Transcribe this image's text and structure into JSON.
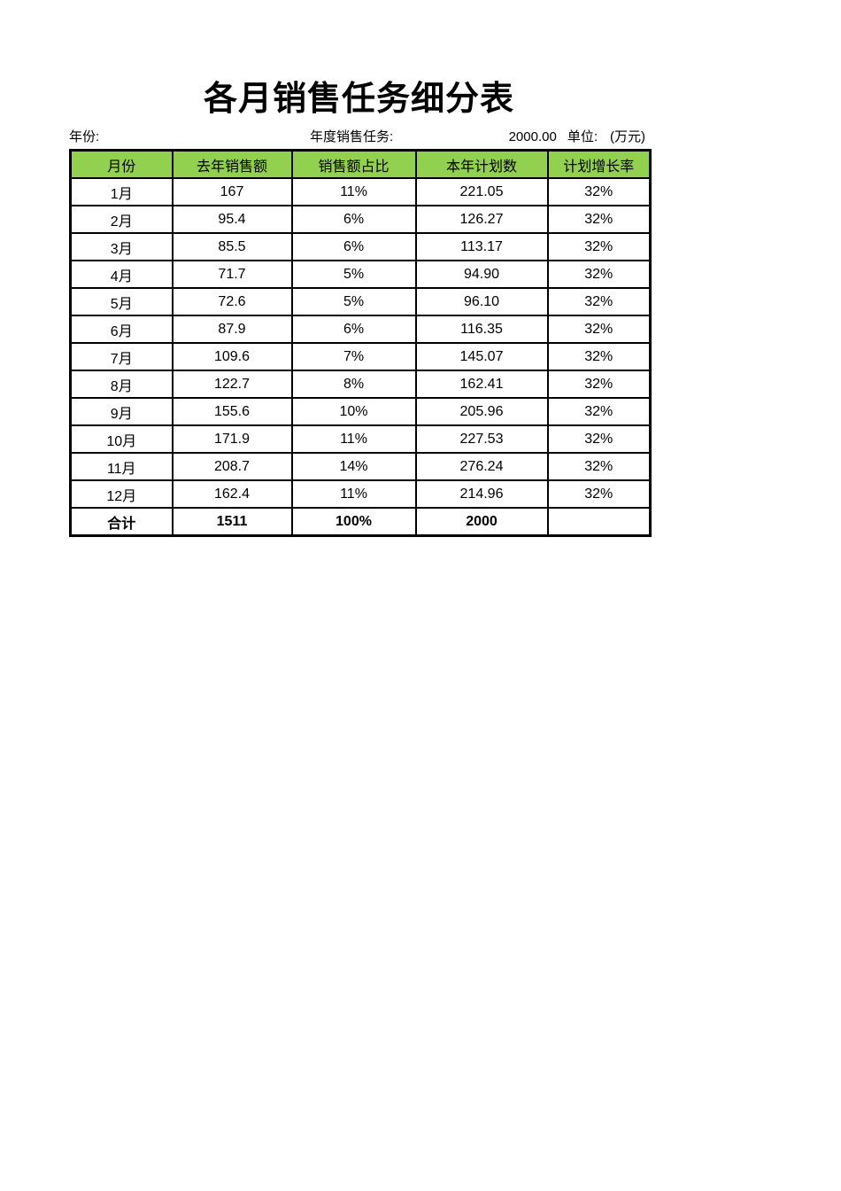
{
  "title": "各月销售任务细分表",
  "meta": {
    "year_label": "年份:",
    "annual_task_label": "年度销售任务:",
    "annual_task_value": "2000.00",
    "unit_label": "单位:",
    "unit_value": "(万元)"
  },
  "table": {
    "columns": [
      "月份",
      "去年销售额",
      "销售额占比",
      "本年计划数",
      "计划增长率"
    ],
    "rows": [
      [
        "1月",
        "167",
        "11%",
        "221.05",
        "32%"
      ],
      [
        "2月",
        "95.4",
        "6%",
        "126.27",
        "32%"
      ],
      [
        "3月",
        "85.5",
        "6%",
        "113.17",
        "32%"
      ],
      [
        "4月",
        "71.7",
        "5%",
        "94.90",
        "32%"
      ],
      [
        "5月",
        "72.6",
        "5%",
        "96.10",
        "32%"
      ],
      [
        "6月",
        "87.9",
        "6%",
        "116.35",
        "32%"
      ],
      [
        "7月",
        "109.6",
        "7%",
        "145.07",
        "32%"
      ],
      [
        "8月",
        "122.7",
        "8%",
        "162.41",
        "32%"
      ],
      [
        "9月",
        "155.6",
        "10%",
        "205.96",
        "32%"
      ],
      [
        "10月",
        "171.9",
        "11%",
        "227.53",
        "32%"
      ],
      [
        "11月",
        "208.7",
        "14%",
        "276.24",
        "32%"
      ],
      [
        "12月",
        "162.4",
        "11%",
        "214.96",
        "32%"
      ]
    ],
    "total_row": [
      "合计",
      "1511",
      "100%",
      "2000",
      ""
    ]
  },
  "colors": {
    "header_bg": "#92D050",
    "border": "#000000",
    "text": "#000000"
  }
}
